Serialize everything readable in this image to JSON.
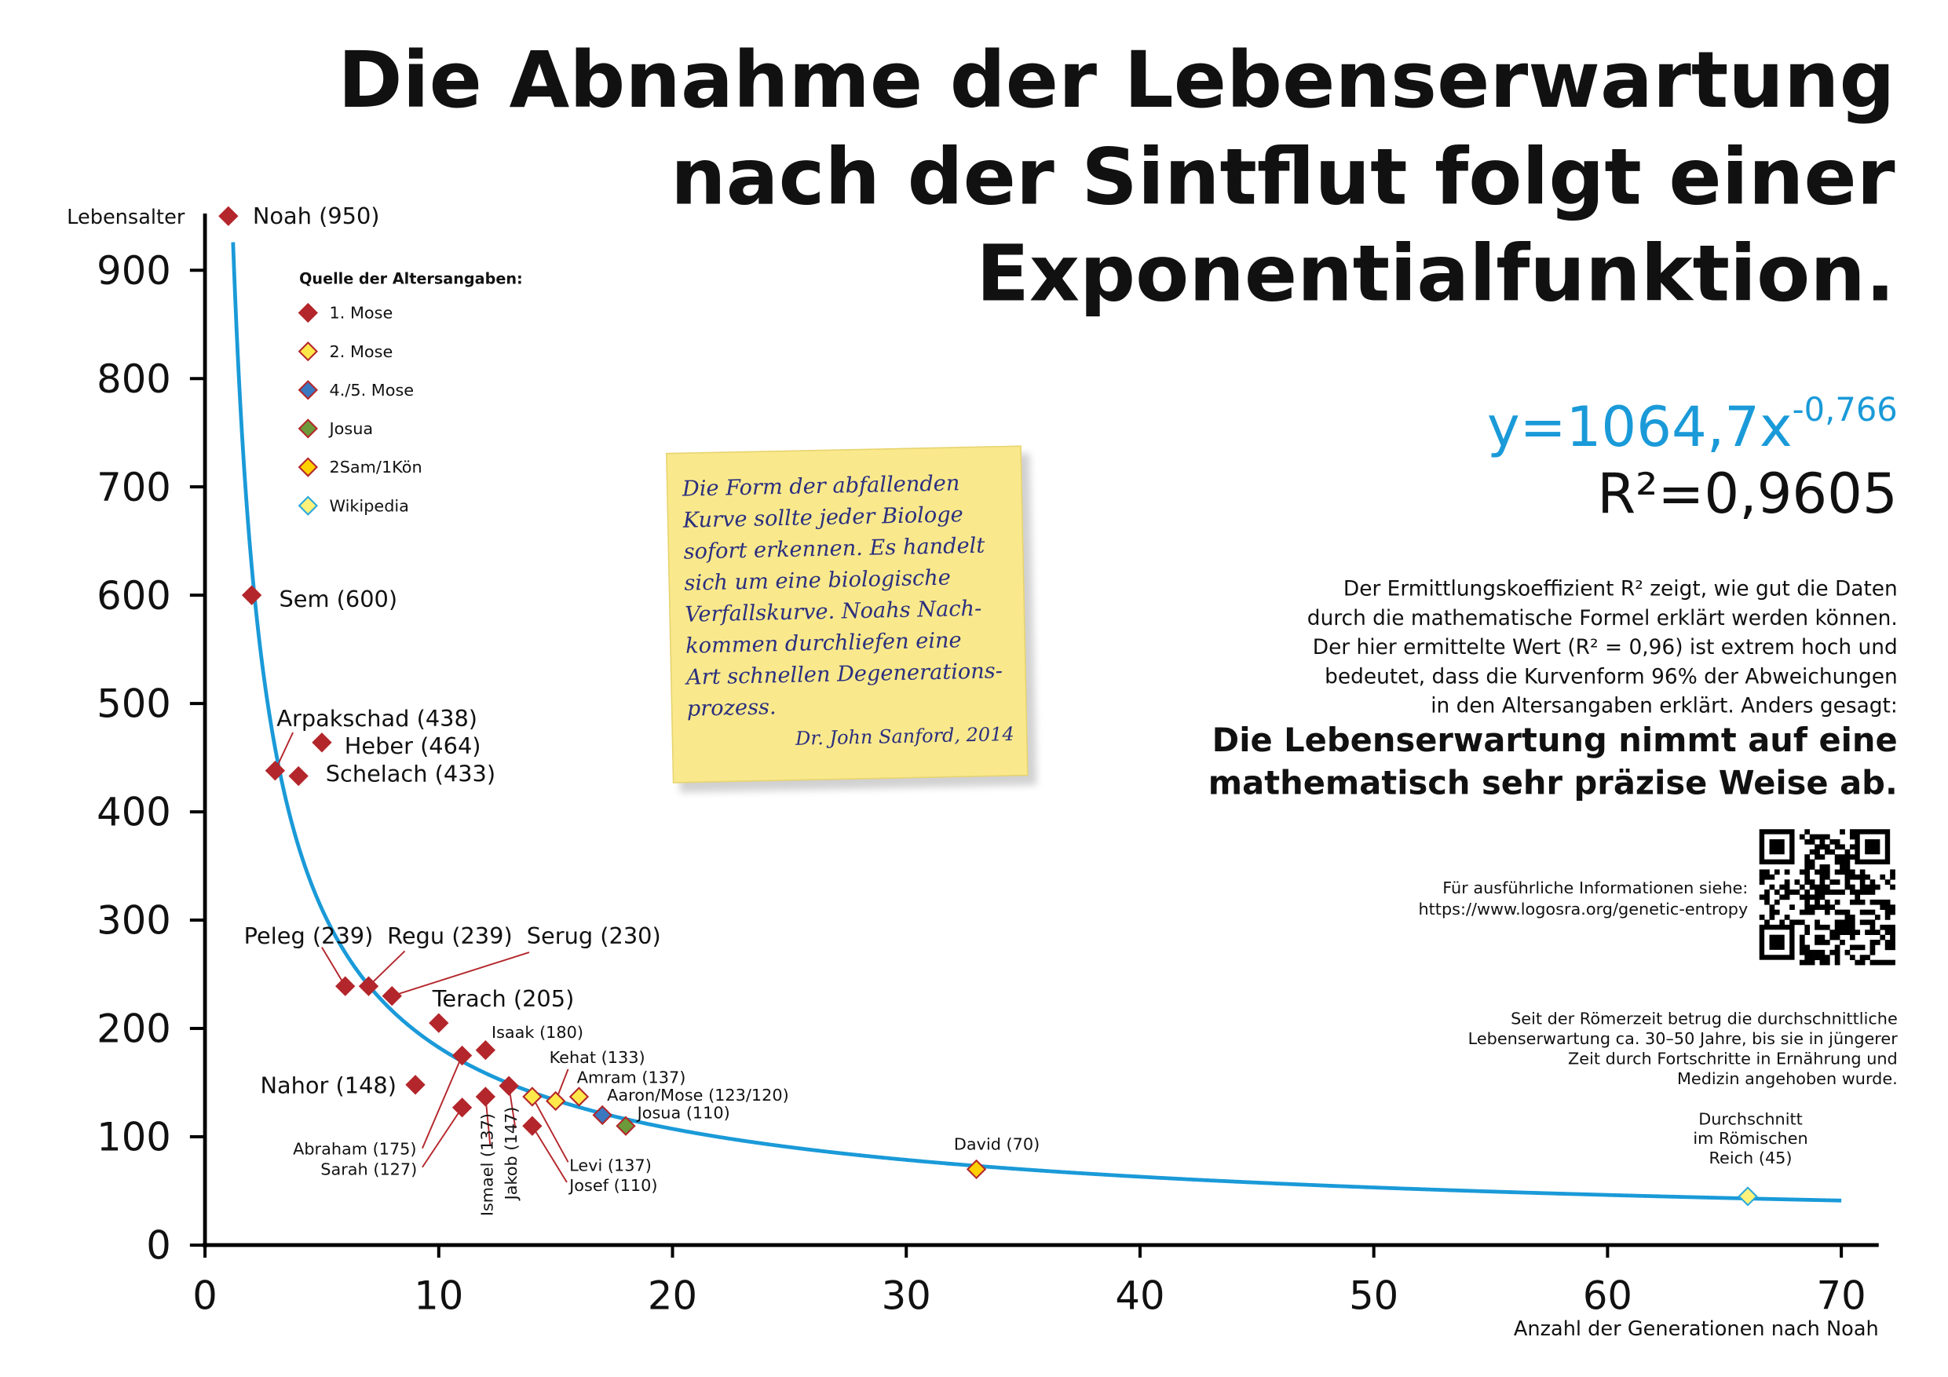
{
  "chart_data": {
    "type": "scatter",
    "title": [
      "Die Abnahme der Lebenserwartung",
      "nach der Sintflut folgt einer",
      "Exponentialfunktion."
    ],
    "y_label": "Lebensalter",
    "x_label": "Anzahl der Generationen nach Noah",
    "xlim": [
      0,
      71.6
    ],
    "ylim": [
      0,
      950
    ],
    "xticks": [
      0,
      10,
      20,
      30,
      40,
      50,
      60,
      70
    ],
    "yticks": [
      0,
      100,
      200,
      300,
      400,
      500,
      600,
      700,
      800,
      900
    ],
    "grid": false,
    "legend_title": "Quelle der Altersangaben:",
    "series": [
      {
        "name": "1. Mose",
        "color": "#b3262b",
        "edge": "#b3262b",
        "x": [
          1,
          2,
          3,
          5,
          4,
          6,
          7,
          8,
          10,
          9,
          11,
          11,
          12,
          12,
          13,
          14
        ],
        "values": [
          950,
          600,
          438,
          464,
          433,
          239,
          239,
          230,
          205,
          148,
          175,
          127,
          180,
          137,
          147,
          110
        ],
        "labels": [
          "Noah (950)",
          "Sem (600)",
          "Arpakschad (438)",
          "Heber (464)",
          "Schelach (433)",
          "Peleg (239)",
          "Regu (239)",
          "Serug (230)",
          "Terach (205)",
          "Nahor (148)",
          "Abraham (175)",
          "Sarah (127)",
          "Isaak (180)",
          "Ismael (137)",
          "Jakob (147)",
          "Josef (110)"
        ]
      },
      {
        "name": "2. Mose",
        "color": "#ffe84a",
        "edge": "#b3262b",
        "x": [
          14,
          15,
          16
        ],
        "values": [
          137,
          133,
          137
        ],
        "labels": [
          "Levi (137)",
          "Kehat (133)",
          "Amram (137)"
        ]
      },
      {
        "name": "4./5. Mose",
        "color": "#3a78c0",
        "edge": "#b3262b",
        "x": [
          17
        ],
        "values": [
          120
        ],
        "labels": [
          "Aaron/Mose (123/120)"
        ]
      },
      {
        "name": "Josua",
        "color": "#6c9a3a",
        "edge": "#b3262b",
        "x": [
          18
        ],
        "values": [
          110
        ],
        "labels": [
          "Josua (110)"
        ]
      },
      {
        "name": "2Sam/1Kön",
        "color": "#ffd000",
        "edge": "#b3262b",
        "x": [
          33
        ],
        "values": [
          70
        ],
        "labels": [
          "David (70)"
        ]
      },
      {
        "name": "Wikipedia",
        "color": "#fff27a",
        "edge": "#2aa8de",
        "x": [
          66
        ],
        "values": [
          45
        ],
        "labels": [
          [
            "Durchschnitt",
            "im Römischen",
            "Reich (45)"
          ]
        ]
      }
    ],
    "fit": {
      "text": "y=1064,7x",
      "exponent": "-0,766",
      "a": 1064.7,
      "b": -0.766,
      "color": "#1a9ad8"
    },
    "r2": "R²=0,9605",
    "explanation": [
      "Der Ermittlungskoeffizient R² zeigt, wie gut die Daten",
      "durch die mathematische Formel erklärt werden können.",
      "Der hier ermittelte Wert (R² = 0,96) ist extrem hoch und",
      "bedeutet, dass die Kurvenform 96% der Abweichungen",
      "in den Altersangaben erklärt. Anders gesagt:"
    ],
    "conclusion": [
      "Die Lebenserwartung nimmt auf eine",
      "mathematisch sehr präzise Weise ab."
    ],
    "info": [
      "Für ausführliche Informationen siehe:",
      "https://www.logosra.org/genetic-entropy"
    ],
    "roman_note": [
      "Seit der Römerzeit betrug die durchschnittliche",
      "Lebenserwartung ca. 30–50 Jahre, bis sie in jüngerer",
      "Zeit durch Fortschritte in Ernährung und",
      "Medizin angehoben wurde."
    ],
    "quote": [
      "Die Form der abfallenden",
      "Kurve sollte jeder Biologe",
      "sofort erkennen. Es handelt",
      "sich um eine biologische",
      "Verfallskurve. Noahs Nach-",
      "kommen durchliefen eine",
      "Art schnellen Degenerations-",
      "prozess."
    ],
    "quote_author": "Dr. John Sanford, 2014"
  }
}
